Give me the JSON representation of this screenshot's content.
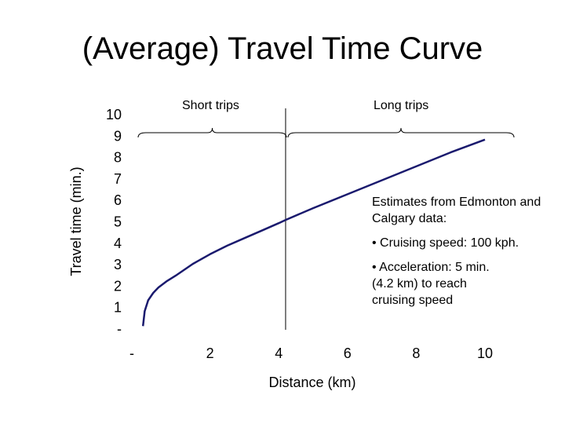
{
  "slide": {
    "title": "(Average) Travel Time Curve"
  },
  "chart_data": {
    "type": "line",
    "xlabel": "Distance (km)",
    "ylabel": "Travel time (min.)",
    "xlim": [
      0,
      10
    ],
    "ylim": [
      0,
      10
    ],
    "x_ticks": [
      0,
      2,
      4,
      6,
      8,
      10
    ],
    "x_tick_labels": [
      "-",
      "2",
      "4",
      "6",
      "8",
      "10"
    ],
    "y_ticks": [
      0,
      1,
      2,
      3,
      4,
      5,
      6,
      7,
      8,
      9,
      10
    ],
    "y_tick_labels": [
      "-",
      "1",
      "2",
      "3",
      "4",
      "5",
      "6",
      "7",
      "8",
      "9",
      "10"
    ],
    "grid": false,
    "legend": "none",
    "series": [
      {
        "color": "#1a1a6e",
        "x": [
          0.05,
          0.1,
          0.2,
          0.35,
          0.5,
          0.75,
          1.0,
          1.5,
          2.0,
          2.5,
          3.0,
          3.5,
          4.0,
          4.2,
          5.0,
          6.0,
          7.0,
          8.0,
          9.0,
          10.0
        ],
        "y": [
          0.1,
          0.8,
          1.3,
          1.65,
          1.9,
          2.2,
          2.45,
          3.0,
          3.45,
          3.85,
          4.2,
          4.55,
          4.9,
          5.05,
          5.6,
          6.25,
          6.9,
          7.55,
          8.2,
          8.8
        ]
      }
    ],
    "divider_x": 4.2,
    "braces": [
      {
        "label": "Short trips",
        "from": 0,
        "to": 4.2
      },
      {
        "label": "Long trips",
        "from": 4.2,
        "to": 10.8
      }
    ]
  },
  "notes": {
    "heading": "Estimates from Edmonton and Calgary data:",
    "bullet_1": "• Cruising speed: 100 kph.",
    "bullet_2": "• Acceleration: 5 min.\n   (4.2 km) to reach\n   cruising speed"
  }
}
